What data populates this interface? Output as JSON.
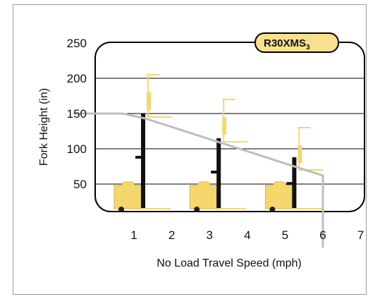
{
  "chart_data": {
    "type": "line",
    "badge": {
      "text": "R30XMS",
      "subscript": "3"
    },
    "xlabel": "No Load Travel Speed (mph)",
    "ylabel": "Fork Height (in)",
    "xlim": [
      0,
      7
    ],
    "ylim": [
      0,
      250
    ],
    "x_ticks": [
      1,
      2,
      3,
      4,
      5,
      6,
      7
    ],
    "y_ticks": [
      50,
      100,
      150,
      200,
      250
    ],
    "series": [
      {
        "x": [
          -0.6,
          0.7,
          1.3,
          6.0,
          6.0
        ],
        "y": [
          150,
          150,
          143,
          62,
          -40
        ]
      }
    ],
    "truck_icons": [
      {
        "x": 1.0,
        "mast_height": 150,
        "fork_height": 205
      },
      {
        "x": 3.0,
        "mast_height": 115,
        "fork_height": 170
      },
      {
        "x": 5.0,
        "mast_height": 88,
        "fork_height": 130
      }
    ],
    "colors": {
      "curve": "#bdbdbd",
      "truck": "#f5d76e",
      "truck_outline": "#d9b43a",
      "badge_fill": "#f8e08e",
      "grid": "#000000"
    }
  }
}
